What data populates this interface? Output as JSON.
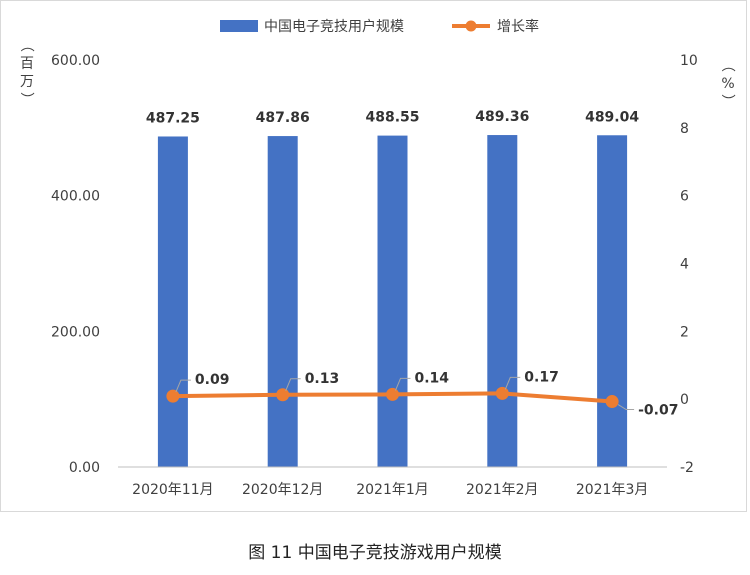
{
  "caption": "图 11  中国电子竞技游戏用户规模",
  "chart_data": {
    "type": "bar",
    "categories": [
      "2020年11月",
      "2020年12月",
      "2021年1月",
      "2021年2月",
      "2021年3月"
    ],
    "series": [
      {
        "name": "中国电子竞技用户规模",
        "type": "bar",
        "axis": "left",
        "color": "#4472C4",
        "values": [
          487.25,
          487.86,
          488.55,
          489.36,
          489.04
        ],
        "labels": [
          "487.25",
          "487.86",
          "488.55",
          "489.36",
          "489.04"
        ]
      },
      {
        "name": "增长率",
        "type": "line",
        "axis": "right",
        "color": "#ED7D31",
        "values": [
          0.09,
          0.13,
          0.14,
          0.17,
          -0.07
        ],
        "labels": [
          "0.09",
          "0.13",
          "0.14",
          "0.17",
          "-0.07"
        ]
      }
    ],
    "y_left": {
      "label": "（百万）",
      "ylim": [
        0,
        600
      ],
      "ticks": [
        "0.00",
        "200.00",
        "400.00",
        "600.00"
      ],
      "tick_values": [
        0,
        200,
        400,
        600
      ]
    },
    "y_right": {
      "label": "（%）",
      "ylim": [
        -2,
        10
      ],
      "ticks": [
        "-2",
        "0",
        "2",
        "4",
        "6",
        "8",
        "10"
      ],
      "tick_values": [
        -2,
        0,
        2,
        4,
        6,
        8,
        10
      ]
    },
    "grid": false,
    "legend": "top-center"
  }
}
